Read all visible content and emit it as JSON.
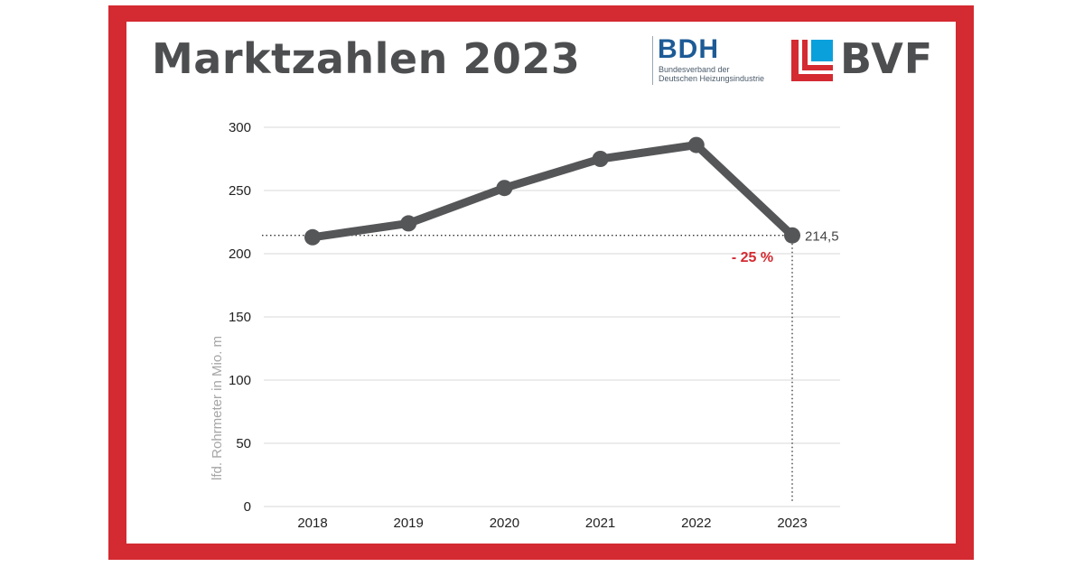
{
  "header": {
    "title": "Marktzahlen 2023"
  },
  "logos": {
    "bdh": {
      "name": "BDH",
      "subtitle_line1": "Bundesverband der",
      "subtitle_line2": "Deutschen Heizungsindustrie",
      "color": "#1d5b96"
    },
    "bvf": {
      "name": "BVF",
      "color_red": "#d42a31",
      "color_blue": "#0aa0dc"
    }
  },
  "colors": {
    "frame": "#d42a31",
    "line": "#555658",
    "grid": "#d9d9d9",
    "annotation": "#d42a31"
  },
  "chart_data": {
    "type": "line",
    "categories": [
      "2018",
      "2019",
      "2020",
      "2021",
      "2022",
      "2023"
    ],
    "series": [
      {
        "values": [
          213,
          224,
          252,
          275,
          286,
          214.5
        ]
      }
    ],
    "ylabel": "lfd. Rohrmeter in Mio. m",
    "xlabel": "",
    "ylim": [
      0,
      300
    ],
    "yticks": [
      "0",
      "50",
      "100",
      "150",
      "200",
      "250",
      "300"
    ],
    "grid": true,
    "annotations": {
      "last_value_label": "214,5",
      "change_label": "- 25 %"
    }
  }
}
